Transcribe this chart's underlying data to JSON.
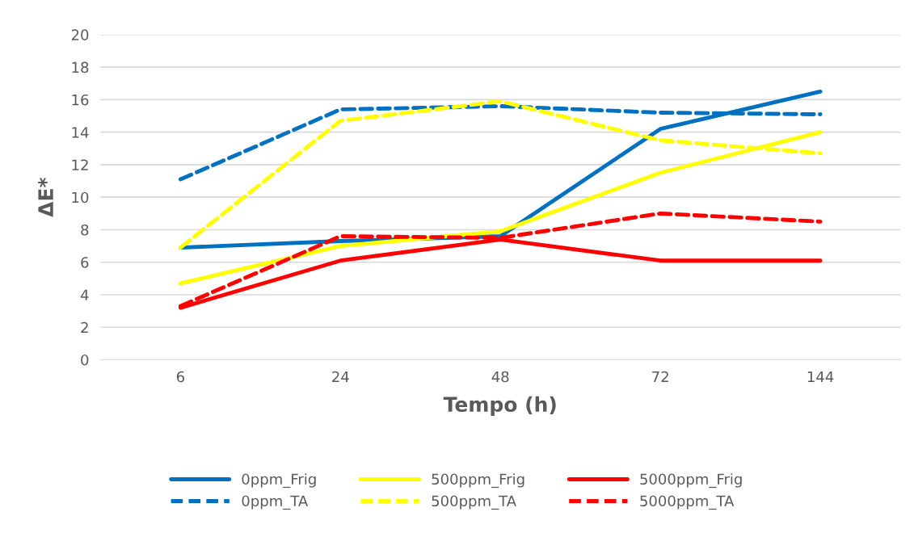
{
  "chart_data": {
    "type": "line",
    "xlabel": "Tempo (h)",
    "ylabel": "ΔE*",
    "categories": [
      "6",
      "24",
      "48",
      "72",
      "144"
    ],
    "ylim": [
      0,
      20
    ],
    "yticks": [
      0,
      2,
      4,
      6,
      8,
      10,
      12,
      14,
      16,
      18,
      20
    ],
    "grid": "y",
    "legend": "bottom",
    "marker": "none",
    "series": [
      {
        "name": "0ppm_Frig",
        "color": "#0070c0",
        "line_style": "solid",
        "values": [
          6.9,
          7.3,
          7.6,
          14.2,
          16.5
        ]
      },
      {
        "name": "500ppm_Frig",
        "color": "#ffff00",
        "line_style": "solid",
        "values": [
          4.7,
          7.0,
          7.9,
          11.5,
          14.0
        ]
      },
      {
        "name": "5000ppm_Frig",
        "color": "#ff0000",
        "line_style": "solid",
        "values": [
          3.2,
          6.1,
          7.4,
          6.1,
          6.1
        ]
      },
      {
        "name": "0ppm_TA",
        "color": "#0070c0",
        "line_style": "dashed",
        "values": [
          11.1,
          15.4,
          15.6,
          15.2,
          15.1
        ]
      },
      {
        "name": "500ppm_TA",
        "color": "#ffff00",
        "line_style": "dashed",
        "values": [
          6.9,
          14.7,
          15.9,
          13.5,
          12.7
        ]
      },
      {
        "name": "5000ppm_TA",
        "color": "#ff0000",
        "line_style": "dashed",
        "values": [
          3.3,
          7.6,
          7.5,
          9.0,
          8.5
        ]
      }
    ]
  }
}
